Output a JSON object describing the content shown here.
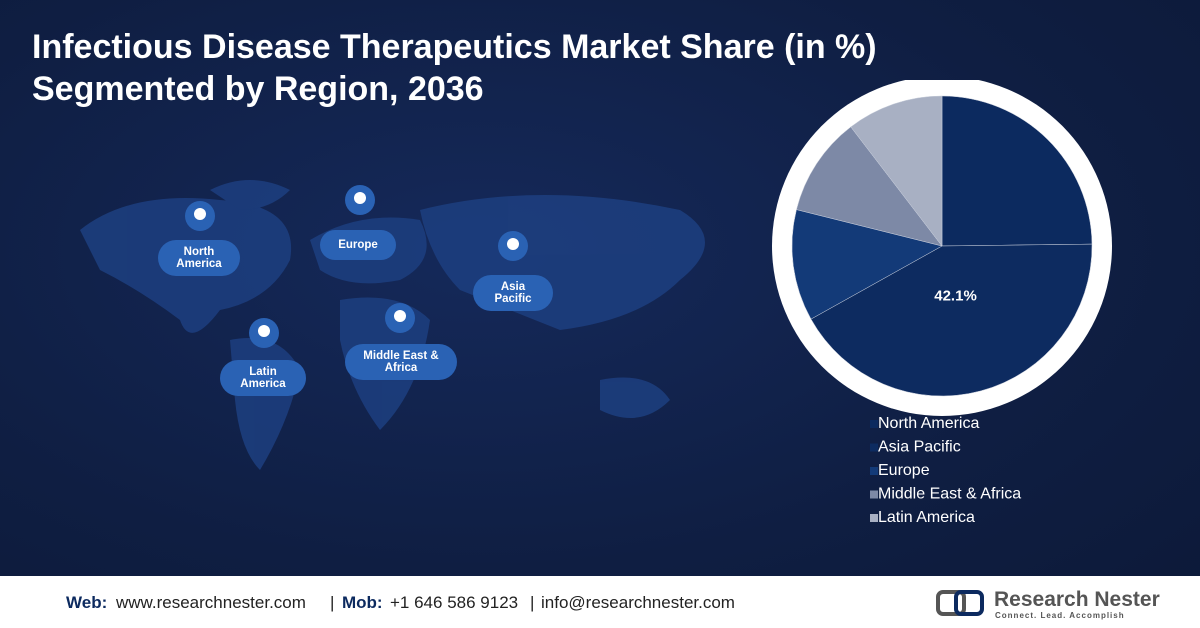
{
  "chart_data": {
    "type": "pie",
    "title": "Infectious Disease Therapeutics Market Share (in %)",
    "subtitle": "Segmented by Region, 2036",
    "categories": [
      "North America",
      "Asia Pacific",
      "Europe",
      "Middle East & Africa",
      "Latin America"
    ],
    "values": [
      24.8,
      42.1,
      12.0,
      10.7,
      10.4
    ],
    "value_labels": [
      null,
      "42.1%",
      null,
      null,
      null
    ],
    "colors": [
      "#0c2a5f",
      "#0d2b60",
      "#133a78",
      "#7d89a6",
      "#a8b0c3"
    ],
    "legend": "bottom-right"
  },
  "map_labels": [
    "North America",
    "Europe",
    "Asia Pacific",
    "Latin America",
    "Middle East & Africa"
  ],
  "footer": {
    "web_label": "Web:",
    "web": "www.researchnester.com",
    "sep1": "|",
    "mob_label": "Mob:",
    "mob": "+1 646 586 9123",
    "sep2": "|",
    "email": "info@researchnester.com"
  },
  "logo": {
    "name": "Research Nester",
    "tagline": "Connect. Lead. Accomplish"
  }
}
